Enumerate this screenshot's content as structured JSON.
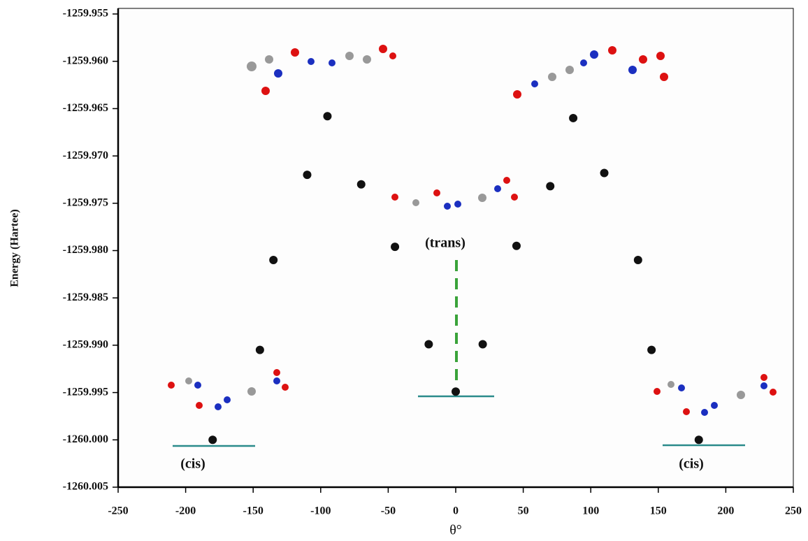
{
  "chart_data": {
    "type": "scatter",
    "x_label": "θ°",
    "y_label": "Energy (Hartee)",
    "series": [
      {
        "color": "#111111",
        "x": [
          -180,
          -145,
          -135,
          -110,
          -95,
          -70,
          -45,
          -20,
          0,
          20,
          45,
          70,
          87,
          110,
          135,
          145,
          180
        ],
        "values": [
          -1260.0,
          -1259.9905,
          -1259.981,
          -1259.972,
          -1259.9658,
          -1259.973,
          -1259.9796,
          -1259.9899,
          -1259.9949,
          -1259.9899,
          -1259.9795,
          -1259.9732,
          -1259.966,
          -1259.9718,
          -1259.981,
          -1259.9905,
          -1260.0
        ]
      }
    ],
    "annotations": [
      "(trans)",
      "(cis)",
      "(cis)"
    ],
    "xlim": [
      -250,
      250
    ],
    "xticks": [
      -250,
      -200,
      -150,
      -100,
      -50,
      0,
      50,
      100,
      150,
      200,
      250
    ],
    "ylim": [
      -1260.005,
      -1259.955
    ],
    "yticks": [
      -1259.955,
      {
        "value": -1259.96,
        "label": "-1259.960"
      },
      -1259.965,
      {
        "value": -1259.97,
        "label": "-1259.970"
      },
      -1259.975,
      {
        "value": -1259.98,
        "label": "-1259.980"
      },
      -1259.985,
      {
        "value": -1259.99,
        "label": "-1259.990"
      },
      -1259.995,
      {
        "value": -1260,
        "label": "-1260.000"
      },
      -1260.005
    ]
  }
}
